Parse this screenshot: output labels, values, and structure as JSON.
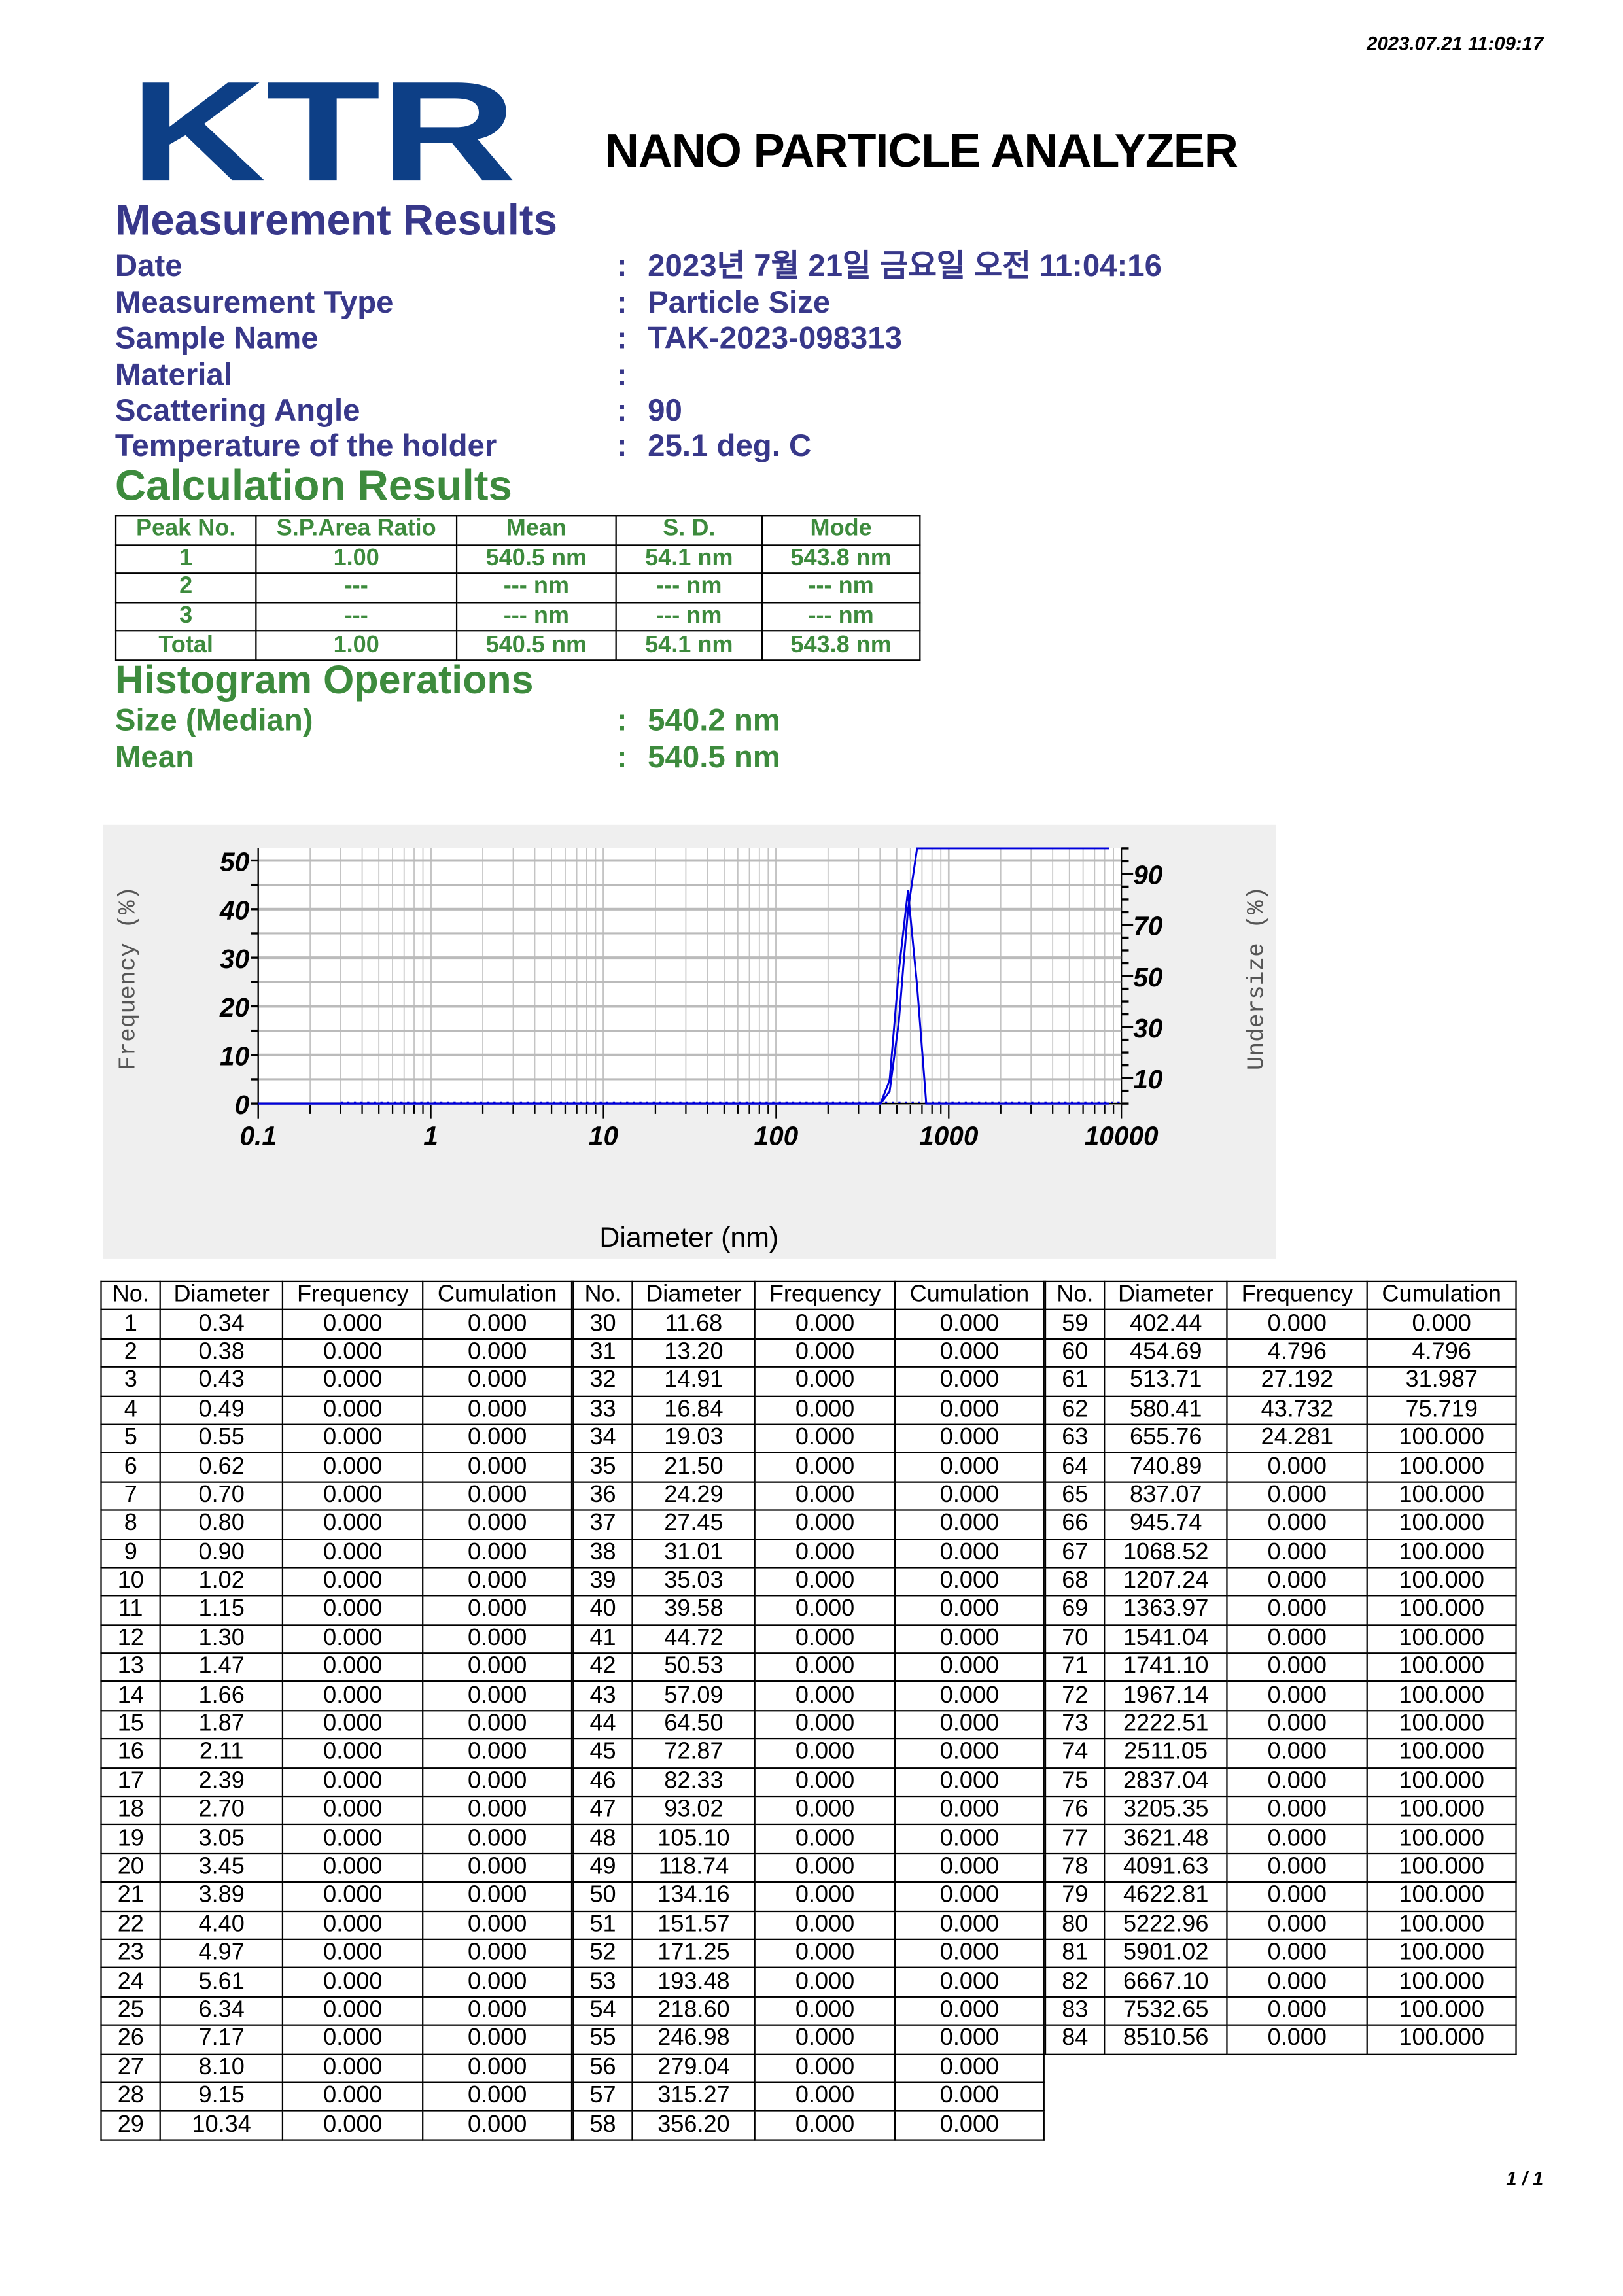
{
  "timestamp": "2023.07.21 11:09:17",
  "logo_text": "KTR",
  "logo_color": "#0d3f86",
  "title": "NANO PARTICLE ANALYZER",
  "measurement": {
    "heading": "Measurement Results",
    "rows": [
      {
        "label": "Date",
        "value": "2023년 7월 21일 금요일 오전 11:04:16"
      },
      {
        "label": "Measurement Type",
        "value": "Particle Size"
      },
      {
        "label": "Sample Name",
        "value": "TAK-2023-098313"
      },
      {
        "label": "Material",
        "value": ""
      },
      {
        "label": "Scattering Angle",
        "value": "90"
      },
      {
        "label": "Temperature of the holder",
        "value": "25.1 deg. C"
      }
    ]
  },
  "calculation": {
    "heading": "Calculation Results",
    "headers": [
      "Peak No.",
      "S.P.Area Ratio",
      "Mean",
      "S. D.",
      "Mode"
    ],
    "rows": [
      [
        "1",
        "1.00",
        "540.5 nm",
        "54.1 nm",
        "543.8 nm"
      ],
      [
        "2",
        "---",
        "--- nm",
        "--- nm",
        "--- nm"
      ],
      [
        "3",
        "---",
        "--- nm",
        "--- nm",
        "--- nm"
      ],
      [
        "Total",
        "1.00",
        "540.5 nm",
        "54.1 nm",
        "543.8 nm"
      ]
    ]
  },
  "histogram": {
    "heading": "Histogram Operations",
    "rows": [
      {
        "label": "Size (Median)",
        "value": "540.2 nm"
      },
      {
        "label": "Mean",
        "value": "540.5 nm"
      }
    ]
  },
  "separator": ":",
  "chart_data": {
    "type": "line",
    "xlabel": "Diameter (nm)",
    "ylabel_left": "Frequency (%)",
    "ylabel_right": "Undersize (%)",
    "x_scale": "log",
    "xlim": [
      0.1,
      10000
    ],
    "x_ticks": [
      "0.1",
      "1",
      "10",
      "100",
      "1000",
      "10000"
    ],
    "ylim_left": [
      0,
      52.5
    ],
    "y_ticks_left": [
      "0",
      "10",
      "20",
      "30",
      "40",
      "50"
    ],
    "ylim_right": [
      0,
      100
    ],
    "y_ticks_right": [
      "10",
      "30",
      "50",
      "70",
      "90"
    ],
    "grid": true,
    "line_color": "#0000dd",
    "background": "#efefef"
  },
  "data_table": {
    "headers": [
      "No.",
      "Diameter",
      "Frequency",
      "Cumulation"
    ],
    "rows": [
      [
        "1",
        "0.34",
        "0.000",
        "0.000"
      ],
      [
        "2",
        "0.38",
        "0.000",
        "0.000"
      ],
      [
        "3",
        "0.43",
        "0.000",
        "0.000"
      ],
      [
        "4",
        "0.49",
        "0.000",
        "0.000"
      ],
      [
        "5",
        "0.55",
        "0.000",
        "0.000"
      ],
      [
        "6",
        "0.62",
        "0.000",
        "0.000"
      ],
      [
        "7",
        "0.70",
        "0.000",
        "0.000"
      ],
      [
        "8",
        "0.80",
        "0.000",
        "0.000"
      ],
      [
        "9",
        "0.90",
        "0.000",
        "0.000"
      ],
      [
        "10",
        "1.02",
        "0.000",
        "0.000"
      ],
      [
        "11",
        "1.15",
        "0.000",
        "0.000"
      ],
      [
        "12",
        "1.30",
        "0.000",
        "0.000"
      ],
      [
        "13",
        "1.47",
        "0.000",
        "0.000"
      ],
      [
        "14",
        "1.66",
        "0.000",
        "0.000"
      ],
      [
        "15",
        "1.87",
        "0.000",
        "0.000"
      ],
      [
        "16",
        "2.11",
        "0.000",
        "0.000"
      ],
      [
        "17",
        "2.39",
        "0.000",
        "0.000"
      ],
      [
        "18",
        "2.70",
        "0.000",
        "0.000"
      ],
      [
        "19",
        "3.05",
        "0.000",
        "0.000"
      ],
      [
        "20",
        "3.45",
        "0.000",
        "0.000"
      ],
      [
        "21",
        "3.89",
        "0.000",
        "0.000"
      ],
      [
        "22",
        "4.40",
        "0.000",
        "0.000"
      ],
      [
        "23",
        "4.97",
        "0.000",
        "0.000"
      ],
      [
        "24",
        "5.61",
        "0.000",
        "0.000"
      ],
      [
        "25",
        "6.34",
        "0.000",
        "0.000"
      ],
      [
        "26",
        "7.17",
        "0.000",
        "0.000"
      ],
      [
        "27",
        "8.10",
        "0.000",
        "0.000"
      ],
      [
        "28",
        "9.15",
        "0.000",
        "0.000"
      ],
      [
        "29",
        "10.34",
        "0.000",
        "0.000"
      ],
      [
        "30",
        "11.68",
        "0.000",
        "0.000"
      ],
      [
        "31",
        "13.20",
        "0.000",
        "0.000"
      ],
      [
        "32",
        "14.91",
        "0.000",
        "0.000"
      ],
      [
        "33",
        "16.84",
        "0.000",
        "0.000"
      ],
      [
        "34",
        "19.03",
        "0.000",
        "0.000"
      ],
      [
        "35",
        "21.50",
        "0.000",
        "0.000"
      ],
      [
        "36",
        "24.29",
        "0.000",
        "0.000"
      ],
      [
        "37",
        "27.45",
        "0.000",
        "0.000"
      ],
      [
        "38",
        "31.01",
        "0.000",
        "0.000"
      ],
      [
        "39",
        "35.03",
        "0.000",
        "0.000"
      ],
      [
        "40",
        "39.58",
        "0.000",
        "0.000"
      ],
      [
        "41",
        "44.72",
        "0.000",
        "0.000"
      ],
      [
        "42",
        "50.53",
        "0.000",
        "0.000"
      ],
      [
        "43",
        "57.09",
        "0.000",
        "0.000"
      ],
      [
        "44",
        "64.50",
        "0.000",
        "0.000"
      ],
      [
        "45",
        "72.87",
        "0.000",
        "0.000"
      ],
      [
        "46",
        "82.33",
        "0.000",
        "0.000"
      ],
      [
        "47",
        "93.02",
        "0.000",
        "0.000"
      ],
      [
        "48",
        "105.10",
        "0.000",
        "0.000"
      ],
      [
        "49",
        "118.74",
        "0.000",
        "0.000"
      ],
      [
        "50",
        "134.16",
        "0.000",
        "0.000"
      ],
      [
        "51",
        "151.57",
        "0.000",
        "0.000"
      ],
      [
        "52",
        "171.25",
        "0.000",
        "0.000"
      ],
      [
        "53",
        "193.48",
        "0.000",
        "0.000"
      ],
      [
        "54",
        "218.60",
        "0.000",
        "0.000"
      ],
      [
        "55",
        "246.98",
        "0.000",
        "0.000"
      ],
      [
        "56",
        "279.04",
        "0.000",
        "0.000"
      ],
      [
        "57",
        "315.27",
        "0.000",
        "0.000"
      ],
      [
        "58",
        "356.20",
        "0.000",
        "0.000"
      ],
      [
        "59",
        "402.44",
        "0.000",
        "0.000"
      ],
      [
        "60",
        "454.69",
        "4.796",
        "4.796"
      ],
      [
        "61",
        "513.71",
        "27.192",
        "31.987"
      ],
      [
        "62",
        "580.41",
        "43.732",
        "75.719"
      ],
      [
        "63",
        "655.76",
        "24.281",
        "100.000"
      ],
      [
        "64",
        "740.89",
        "0.000",
        "100.000"
      ],
      [
        "65",
        "837.07",
        "0.000",
        "100.000"
      ],
      [
        "66",
        "945.74",
        "0.000",
        "100.000"
      ],
      [
        "67",
        "1068.52",
        "0.000",
        "100.000"
      ],
      [
        "68",
        "1207.24",
        "0.000",
        "100.000"
      ],
      [
        "69",
        "1363.97",
        "0.000",
        "100.000"
      ],
      [
        "70",
        "1541.04",
        "0.000",
        "100.000"
      ],
      [
        "71",
        "1741.10",
        "0.000",
        "100.000"
      ],
      [
        "72",
        "1967.14",
        "0.000",
        "100.000"
      ],
      [
        "73",
        "2222.51",
        "0.000",
        "100.000"
      ],
      [
        "74",
        "2511.05",
        "0.000",
        "100.000"
      ],
      [
        "75",
        "2837.04",
        "0.000",
        "100.000"
      ],
      [
        "76",
        "3205.35",
        "0.000",
        "100.000"
      ],
      [
        "77",
        "3621.48",
        "0.000",
        "100.000"
      ],
      [
        "78",
        "4091.63",
        "0.000",
        "100.000"
      ],
      [
        "79",
        "4622.81",
        "0.000",
        "100.000"
      ],
      [
        "80",
        "5222.96",
        "0.000",
        "100.000"
      ],
      [
        "81",
        "5901.02",
        "0.000",
        "100.000"
      ],
      [
        "82",
        "6667.10",
        "0.000",
        "100.000"
      ],
      [
        "83",
        "7532.65",
        "0.000",
        "100.000"
      ],
      [
        "84",
        "8510.56",
        "0.000",
        "100.000"
      ]
    ]
  },
  "page_number": "1 / 1"
}
